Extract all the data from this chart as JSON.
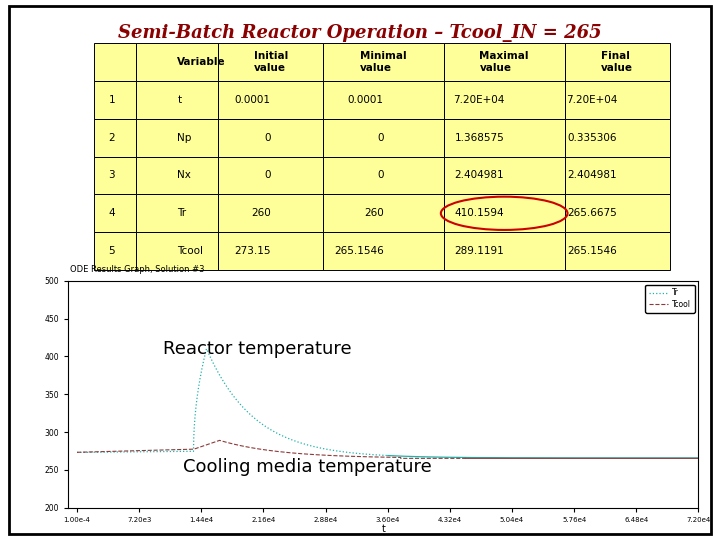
{
  "title": "Semi-Batch Reactor Operation – Tcool_IN = 265",
  "title_color": "#8B0000",
  "title_fontsize": 13,
  "bg_color": "#ffffff",
  "table": {
    "header_bg": "#ffff99",
    "row_bg": "#ffff99",
    "col_labels": [
      "",
      "Variable",
      "Initial\nvalue",
      "Minimal\nvalue",
      "Maximal\nvalue",
      "Final\nvalue"
    ],
    "rows": [
      [
        "1",
        "t",
        "0.0001",
        "0.0001",
        "7.20E+04",
        "7.20E+04"
      ],
      [
        "2",
        "Np",
        "0",
        "0",
        "1.368575",
        "0.335306"
      ],
      [
        "3",
        "Nx",
        "0",
        "0",
        "2.404981",
        "2.404981"
      ],
      [
        "4",
        "Tr",
        "260",
        "260",
        "410.1594",
        "265.6675"
      ],
      [
        "5",
        "Tcool",
        "273.15",
        "265.1546",
        "289.1191",
        "265.1546"
      ]
    ],
    "circle_row": 3,
    "circle_col": 4,
    "circle_color": "#cc0000"
  },
  "graph": {
    "subtitle": "ODE Results Graph, Solution #3",
    "subtitle_fontsize": 6,
    "ylim": [
      200,
      500
    ],
    "yticks": [
      200,
      250,
      300,
      350,
      400,
      450,
      500
    ],
    "Tr_color": "#20B2AA",
    "Tcool_color": "#8B3A3A",
    "Tr_label": "Tr",
    "Tcool_label": "Tcool",
    "annotation_reactor": "Reactor temperature",
    "annotation_cooling": "Cooling media temperature",
    "annotation_fontsize": 13
  }
}
